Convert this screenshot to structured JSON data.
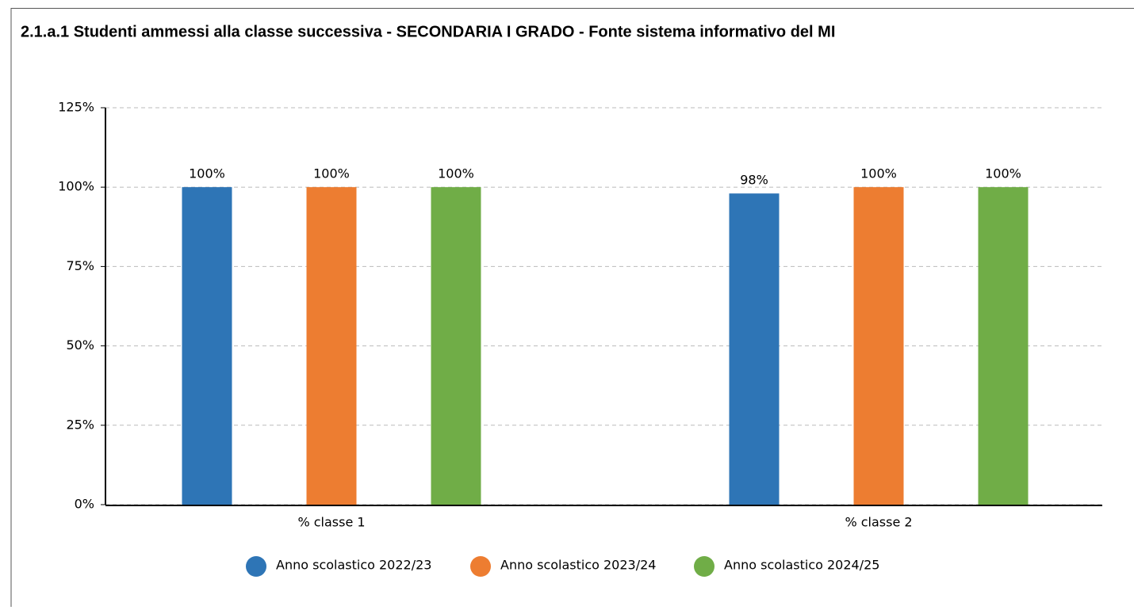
{
  "chart_data": {
    "type": "bar",
    "title": "2.1.a.1 Studenti ammessi alla classe successiva - SECONDARIA I GRADO - Fonte sistema informativo del MI",
    "categories": [
      "% classe 1",
      "% classe 2"
    ],
    "series": [
      {
        "name": "Anno scolastico 2022/23",
        "color": "#2e75b6",
        "values": [
          100,
          98
        ],
        "value_labels": [
          "100%",
          "98%"
        ]
      },
      {
        "name": "Anno scolastico 2023/24",
        "color": "#ed7d31",
        "values": [
          100,
          100
        ],
        "value_labels": [
          "100%",
          "100%"
        ]
      },
      {
        "name": "Anno scolastico 2024/25",
        "color": "#70ad47",
        "values": [
          100,
          100
        ],
        "value_labels": [
          "100%",
          "100%"
        ]
      }
    ],
    "ylim": [
      0,
      125
    ],
    "yticks": [
      {
        "value": 0,
        "label": "0%"
      },
      {
        "value": 25,
        "label": "25%"
      },
      {
        "value": 50,
        "label": "50%"
      },
      {
        "value": 75,
        "label": "75%"
      },
      {
        "value": 100,
        "label": "100%"
      },
      {
        "value": 125,
        "label": "125%"
      }
    ],
    "grid": true,
    "legend": "bottom"
  }
}
